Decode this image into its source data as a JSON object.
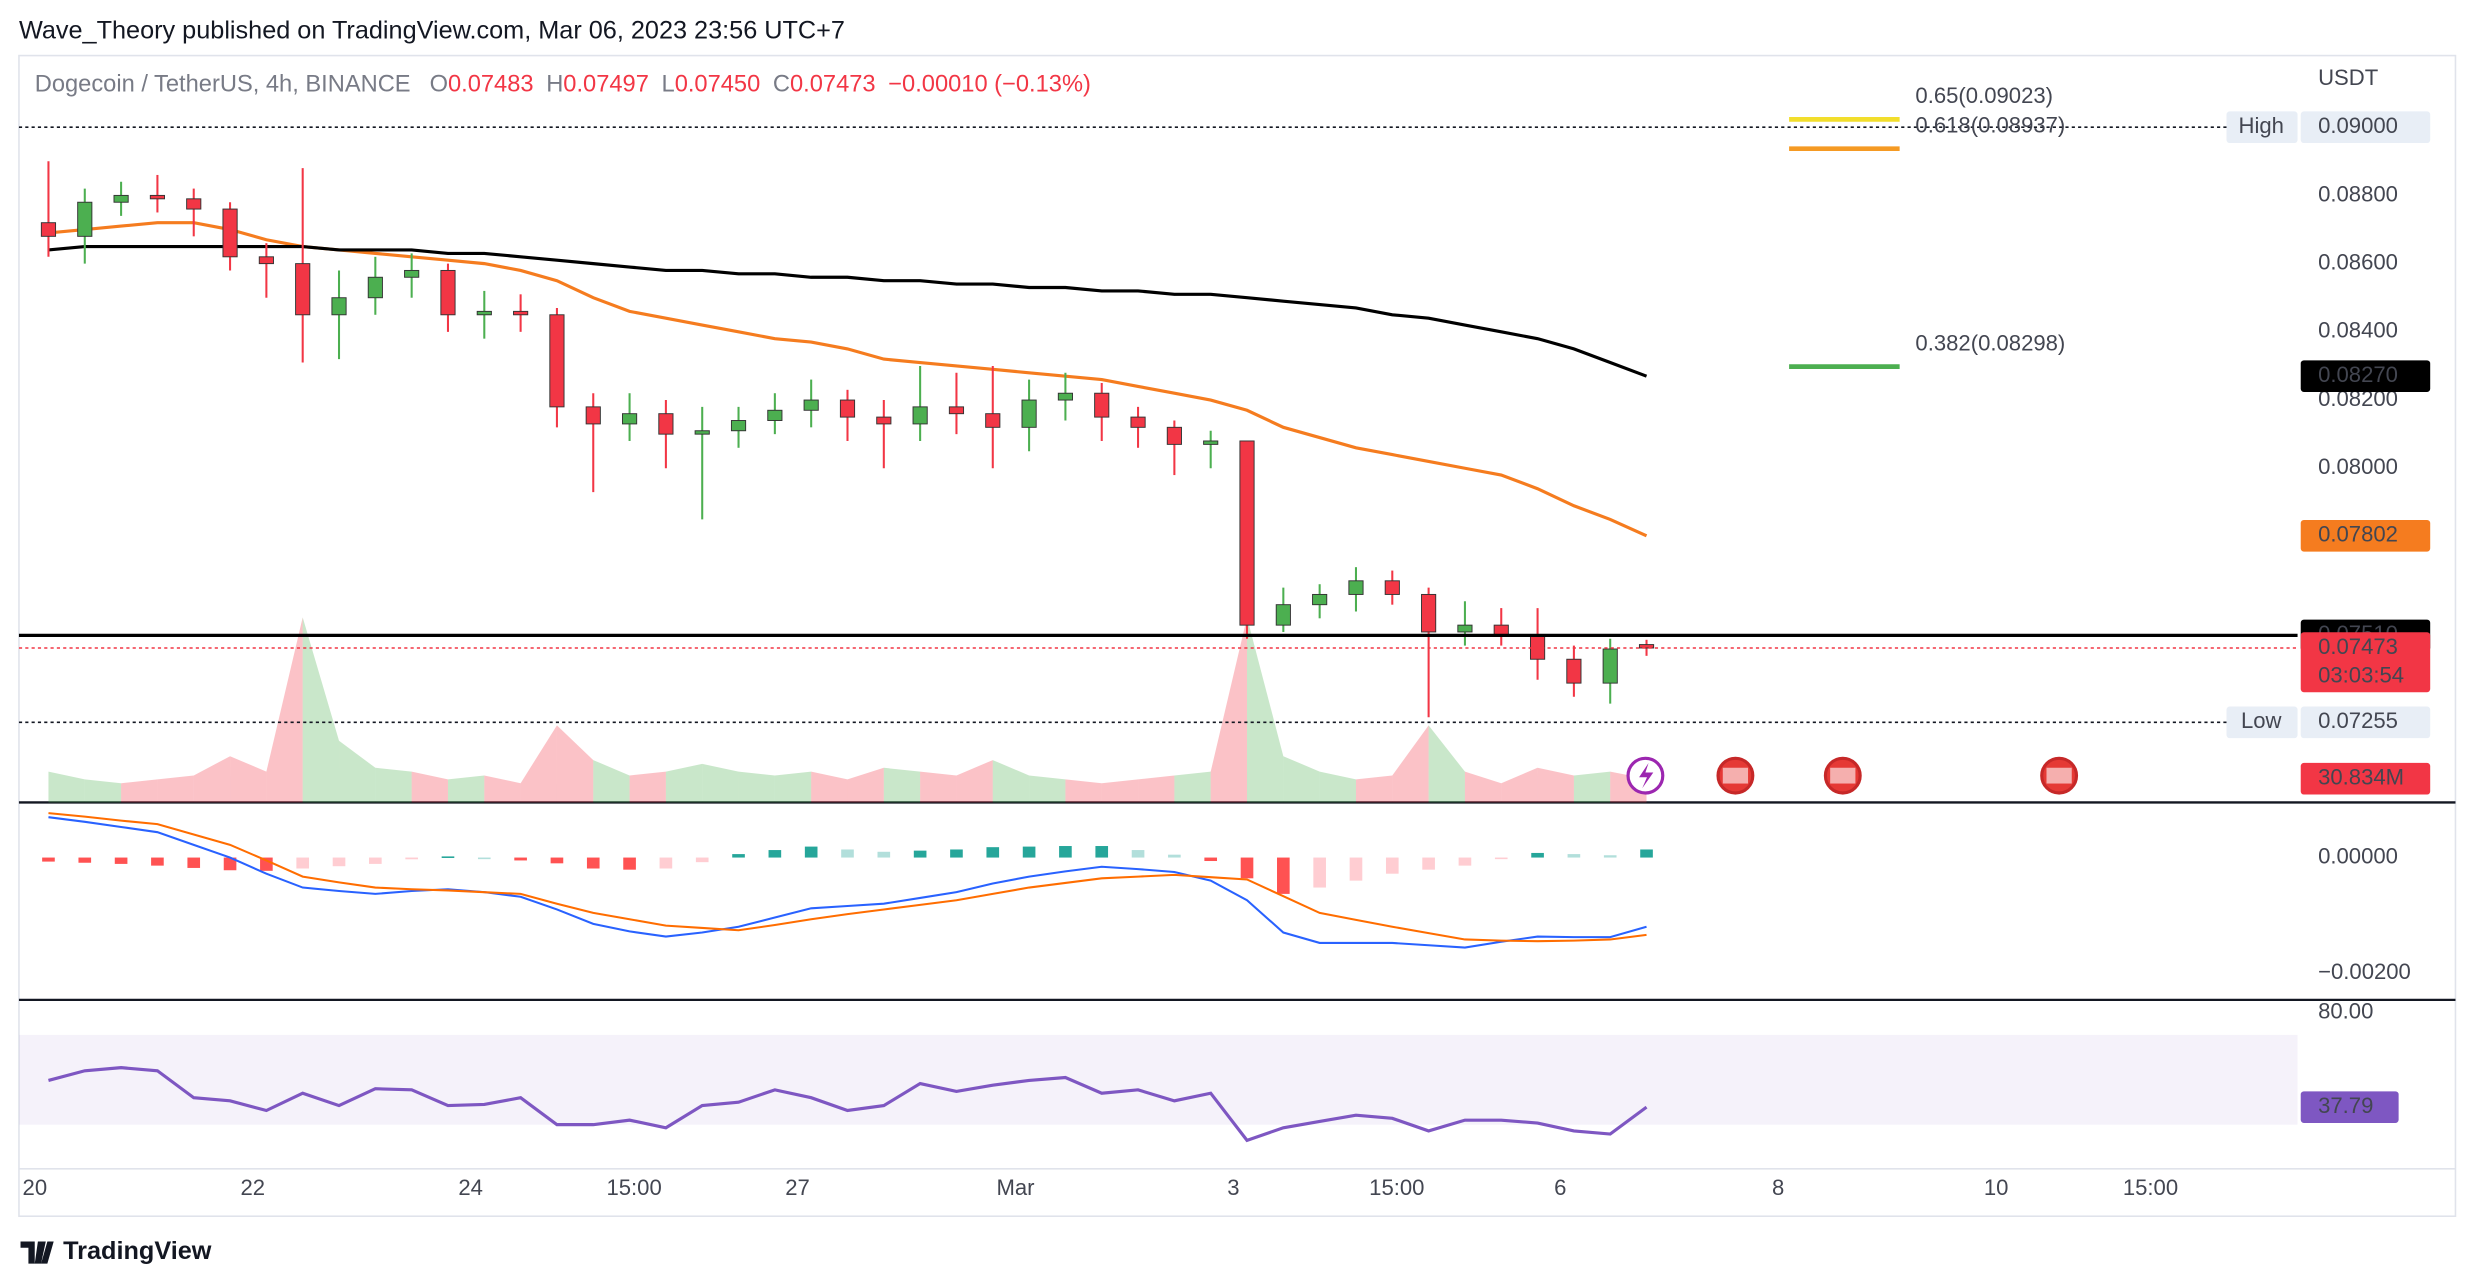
{
  "header": {
    "publisher": "Wave_Theory published on TradingView.com, Mar 06, 2023 23:56 UTC+7",
    "brand": "TradingView"
  },
  "chart_data": [
    {
      "type": "candlestick",
      "ohlc_legend": {
        "title": "Dogecoin / TetherUS, 4h, BINANCE",
        "items": [
          {
            "key": "O",
            "value": "0.07483"
          },
          {
            "key": "H",
            "value": "0.07497"
          },
          {
            "key": "L",
            "value": "0.07450"
          },
          {
            "key": "C",
            "value": "0.07473"
          }
        ],
        "change": "−0.00010 (−0.13%)"
      },
      "y_unit": "USDT",
      "x": [
        3,
        11,
        19,
        27,
        35,
        43,
        51,
        59,
        67,
        75,
        83,
        91,
        99,
        107,
        115,
        123,
        131,
        139,
        147,
        155,
        163,
        171,
        179,
        187,
        195,
        203,
        211,
        219,
        227,
        235,
        243,
        251,
        259,
        267,
        275,
        283,
        291,
        299,
        307,
        315,
        323,
        331,
        339,
        347,
        355
      ],
      "xlim": [
        -3.5,
        498.4
      ],
      "xticks": [
        {
          "value": 0,
          "label": "20"
        },
        {
          "value": 48,
          "label": "22"
        },
        {
          "value": 96,
          "label": "24"
        },
        {
          "value": 132,
          "label": "15:00"
        },
        {
          "value": 168,
          "label": "27"
        },
        {
          "value": 216,
          "label": "Mar"
        },
        {
          "value": 264,
          "label": "3"
        },
        {
          "value": 300,
          "label": "15:00"
        },
        {
          "value": 336,
          "label": "6"
        },
        {
          "value": 384,
          "label": "8"
        },
        {
          "value": 432,
          "label": "10"
        },
        {
          "value": 466,
          "label": "15:00"
        }
      ],
      "ylim": [
        0.0702,
        0.0921
      ],
      "yticks": [
        {
          "value": 0.088,
          "label": "0.08800"
        },
        {
          "value": 0.086,
          "label": "0.08600"
        },
        {
          "value": 0.084,
          "label": "0.08400"
        },
        {
          "value": 0.082,
          "label": "0.08200"
        },
        {
          "value": 0.08,
          "label": "0.08000"
        }
      ],
      "up_color": "#4caf50",
      "down_color": "#f23645",
      "open": [
        0.0872,
        0.0868,
        0.0878,
        0.088,
        0.0879,
        0.0876,
        0.0862,
        0.086,
        0.0845,
        0.085,
        0.0856,
        0.0858,
        0.0845,
        0.0846,
        0.0845,
        0.0818,
        0.0813,
        0.0816,
        0.081,
        0.0811,
        0.0814,
        0.0817,
        0.082,
        0.0815,
        0.0813,
        0.0818,
        0.0816,
        0.0812,
        0.082,
        0.0822,
        0.0815,
        0.0812,
        0.0807,
        0.0808,
        0.0754,
        0.076,
        0.0763,
        0.0767,
        0.0763,
        0.0752,
        0.0754,
        0.0751,
        0.0744,
        0.0737,
        0.07483
      ],
      "high": [
        0.089,
        0.0882,
        0.0884,
        0.0886,
        0.0882,
        0.0878,
        0.0866,
        0.0888,
        0.0858,
        0.0862,
        0.0863,
        0.086,
        0.0852,
        0.0851,
        0.0847,
        0.0822,
        0.0822,
        0.082,
        0.0818,
        0.0818,
        0.0822,
        0.0826,
        0.0823,
        0.082,
        0.083,
        0.0828,
        0.083,
        0.0826,
        0.0828,
        0.0825,
        0.0818,
        0.0814,
        0.0811,
        0.0808,
        0.0765,
        0.0766,
        0.0771,
        0.077,
        0.0765,
        0.0761,
        0.0759,
        0.0759,
        0.0748,
        0.075,
        0.07497
      ],
      "low": [
        0.0862,
        0.086,
        0.0874,
        0.0875,
        0.0868,
        0.0858,
        0.085,
        0.0831,
        0.0832,
        0.0845,
        0.085,
        0.084,
        0.0838,
        0.084,
        0.0812,
        0.0793,
        0.0808,
        0.08,
        0.0785,
        0.0806,
        0.081,
        0.0812,
        0.0808,
        0.08,
        0.0808,
        0.081,
        0.08,
        0.0805,
        0.0814,
        0.0808,
        0.0806,
        0.0798,
        0.08,
        0.075,
        0.0752,
        0.0756,
        0.0758,
        0.076,
        0.0727,
        0.0748,
        0.0748,
        0.0738,
        0.0733,
        0.0731,
        0.0745
      ],
      "close": [
        0.0868,
        0.0878,
        0.088,
        0.0879,
        0.0876,
        0.0862,
        0.086,
        0.0845,
        0.085,
        0.0856,
        0.0858,
        0.0845,
        0.0846,
        0.0845,
        0.0818,
        0.0813,
        0.0816,
        0.081,
        0.0811,
        0.0814,
        0.0817,
        0.082,
        0.0815,
        0.0813,
        0.0818,
        0.0816,
        0.0812,
        0.082,
        0.0822,
        0.0815,
        0.0812,
        0.0807,
        0.0808,
        0.0754,
        0.076,
        0.0763,
        0.0767,
        0.0763,
        0.0752,
        0.0754,
        0.0751,
        0.0744,
        0.0737,
        0.0747,
        0.07473
      ],
      "moving_averages": [
        {
          "color": "#f57c1f",
          "values": [
            0.0869,
            0.087,
            0.0871,
            0.0872,
            0.0872,
            0.087,
            0.0867,
            0.0865,
            0.0864,
            0.0863,
            0.0862,
            0.0861,
            0.086,
            0.0858,
            0.0855,
            0.085,
            0.0846,
            0.0844,
            0.0842,
            0.084,
            0.0838,
            0.0837,
            0.0835,
            0.0832,
            0.0831,
            0.083,
            0.0829,
            0.0828,
            0.0827,
            0.0826,
            0.0824,
            0.0822,
            0.082,
            0.0817,
            0.0812,
            0.0809,
            0.0806,
            0.0804,
            0.0802,
            0.08,
            0.0798,
            0.0794,
            0.0789,
            0.0785,
            0.07802
          ],
          "last_label": {
            "value": 0.07802,
            "label": "0.07802"
          }
        },
        {
          "color": "#000000",
          "values": [
            0.0864,
            0.0865,
            0.0865,
            0.0865,
            0.0865,
            0.0865,
            0.0865,
            0.0865,
            0.0864,
            0.0864,
            0.0864,
            0.0863,
            0.0863,
            0.0862,
            0.0861,
            0.086,
            0.0859,
            0.0858,
            0.0858,
            0.0857,
            0.0857,
            0.0856,
            0.0856,
            0.0855,
            0.0855,
            0.0854,
            0.0854,
            0.0853,
            0.0853,
            0.0852,
            0.0852,
            0.0851,
            0.0851,
            0.085,
            0.0849,
            0.0848,
            0.0847,
            0.0845,
            0.0844,
            0.0842,
            0.084,
            0.0838,
            0.0835,
            0.0831,
            0.0827
          ],
          "last_label": {
            "value": 0.0827,
            "label": "0.08270"
          }
        }
      ],
      "volume": {
        "vlim": [
          0,
          260
        ],
        "up_fill": "rgba(76,175,80,0.3)",
        "down_fill": "rgba(242,54,69,0.3)",
        "values": [
          40,
          30,
          25,
          30,
          35,
          60,
          40,
          240,
          80,
          45,
          40,
          30,
          35,
          25,
          100,
          55,
          35,
          40,
          50,
          40,
          35,
          40,
          30,
          45,
          40,
          35,
          55,
          35,
          30,
          25,
          30,
          35,
          40,
          240,
          60,
          40,
          30,
          35,
          100,
          40,
          25,
          45,
          35,
          40,
          30.834
        ],
        "last_label": {
          "value": 30.834,
          "label": "30.834M"
        }
      },
      "levels": [
        {
          "value": 0.09,
          "label": "0.09000",
          "tag": "High",
          "line_color": "#131722",
          "dashed": true,
          "box_color": "#e8eef6",
          "text_color": "#131722"
        },
        {
          "value": 0.07255,
          "label": "0.07255",
          "tag": "Low",
          "line_color": "#131722",
          "dashed": true,
          "box_color": "#e8eef6",
          "text_color": "#131722"
        },
        {
          "value": 0.0751,
          "label": "0.07510",
          "line_color": "#000000",
          "dashed": false,
          "box_color": "#000000",
          "text_color": "#ffffff"
        },
        {
          "value": 0.07473,
          "label": "0.07473",
          "countdown": "03:03:54",
          "line_color": "#f23645",
          "dashed": true,
          "box_color": "#f23645",
          "text_color": "#ffffff"
        }
      ],
      "fib": [
        {
          "value": 0.09023,
          "label": "0.65(0.09023)",
          "color": "#f2de2c"
        },
        {
          "value": 0.08937,
          "label": "0.618(0.08937)",
          "color": "#f59a23"
        },
        {
          "value": 0.08298,
          "label": "0.382(0.08298)",
          "color": "#4caf50"
        }
      ]
    },
    {
      "type": "macd",
      "ylim": [
        -0.00244,
        0.0009
      ],
      "yticks": [
        {
          "value": 0,
          "label": "0.00000"
        },
        {
          "value": -0.002,
          "label": "−0.00200"
        }
      ],
      "macd": {
        "color": "#2962ff",
        "values": [
          0.0007,
          0.00062,
          0.00053,
          0.00044,
          0.00022,
          0,
          -0.00028,
          -0.00052,
          -0.00058,
          -0.00063,
          -0.00058,
          -0.00055,
          -0.0006,
          -0.00068,
          -0.0009,
          -0.00115,
          -0.00128,
          -0.00137,
          -0.0013,
          -0.0012,
          -0.00104,
          -0.00088,
          -0.00084,
          -0.0008,
          -0.0007,
          -0.0006,
          -0.00045,
          -0.00033,
          -0.00024,
          -0.00016,
          -0.0002,
          -0.00025,
          -0.0004,
          -0.00074,
          -0.0013,
          -0.00148,
          -0.00148,
          -0.00148,
          -0.00152,
          -0.00156,
          -0.00146,
          -0.00137,
          -0.00138,
          -0.00138,
          -0.0012
        ]
      },
      "signal": {
        "color": "#ff6d00",
        "values": [
          0.00077,
          0.00071,
          0.00064,
          0.00058,
          0.0004,
          0.00022,
          -5e-05,
          -0.00033,
          -0.00043,
          -0.00052,
          -0.00055,
          -0.00057,
          -0.0006,
          -0.00063,
          -0.0008,
          -0.00096,
          -0.00107,
          -0.00118,
          -0.00122,
          -0.00126,
          -0.00117,
          -0.00107,
          -0.00098,
          -0.0009,
          -0.00082,
          -0.00074,
          -0.00063,
          -0.00052,
          -0.00044,
          -0.00036,
          -0.00033,
          -0.0003,
          -0.00034,
          -0.00038,
          -0.00067,
          -0.00096,
          -0.00108,
          -0.0012,
          -0.00131,
          -0.00142,
          -0.00144,
          -0.00145,
          -0.00144,
          -0.00142,
          -0.00134
        ]
      },
      "histogram": {
        "colors": {
          "up_strong": "#26a69a",
          "up_weak": "#b2dfdb",
          "down_strong": "#ff5252",
          "down_weak": "#ffcdd2"
        },
        "values": [
          -7e-05,
          -9e-05,
          -0.00011,
          -0.00014,
          -0.00018,
          -0.00022,
          -0.00023,
          -0.00019,
          -0.00015,
          -0.00011,
          -3e-05,
          2e-05,
          0,
          -5e-05,
          -0.0001,
          -0.00019,
          -0.00021,
          -0.00019,
          -8e-05,
          6e-05,
          0.00013,
          0.00019,
          0.00014,
          0.0001,
          0.00012,
          0.00014,
          0.00018,
          0.00019,
          0.0002,
          0.0002,
          0.00013,
          5e-05,
          -6e-05,
          -0.00036,
          -0.00063,
          -0.00052,
          -0.0004,
          -0.00028,
          -0.00021,
          -0.00014,
          -2e-05,
          8e-05,
          6e-05,
          4e-05,
          0.00014
        ]
      }
    },
    {
      "type": "rsi",
      "ylim": [
        10.3,
        84.9
      ],
      "yticks": [
        {
          "value": 80,
          "label": "80.00"
        }
      ],
      "band": [
        30,
        70
      ],
      "band_color": "rgba(126,87,194,0.08)",
      "color": "#7e57c2",
      "values": [
        49.7,
        54,
        55.4,
        54,
        42,
        40.6,
        36.3,
        44,
        38.5,
        46,
        45.5,
        38.5,
        39,
        42,
        30,
        30,
        32,
        28.6,
        38.5,
        40,
        45.5,
        42,
        36.3,
        38.5,
        48.3,
        44.8,
        47.6,
        49.7,
        51,
        44,
        45.5,
        40.6,
        44,
        23,
        28.6,
        31.4,
        34.2,
        32.8,
        27.2,
        32,
        32,
        30.7,
        27.2,
        25.8,
        37.79
      ],
      "last_label": {
        "value": 37.79,
        "label": "37.79"
      }
    }
  ]
}
